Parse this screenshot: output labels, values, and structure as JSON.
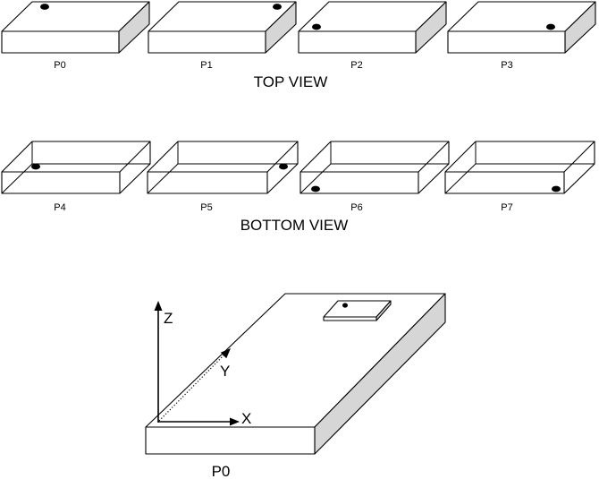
{
  "top_view": {
    "title": "TOP VIEW",
    "items": [
      {
        "label": "P0",
        "corner": "back-left"
      },
      {
        "label": "P1",
        "corner": "back-right"
      },
      {
        "label": "P2",
        "corner": "front-left"
      },
      {
        "label": "P3",
        "corner": "front-right"
      }
    ]
  },
  "bottom_view": {
    "title": "BOTTOM VIEW",
    "items": [
      {
        "label": "P4",
        "corner": "back-left"
      },
      {
        "label": "P5",
        "corner": "back-right"
      },
      {
        "label": "P6",
        "corner": "front-left"
      },
      {
        "label": "P7",
        "corner": "front-right"
      }
    ]
  },
  "detail": {
    "label": "P0",
    "axes": {
      "x": "X",
      "y": "Y",
      "z": "Z"
    }
  },
  "colors": {
    "line": "#000000",
    "side_face": "#d6d6d6",
    "background": "#ffffff"
  }
}
